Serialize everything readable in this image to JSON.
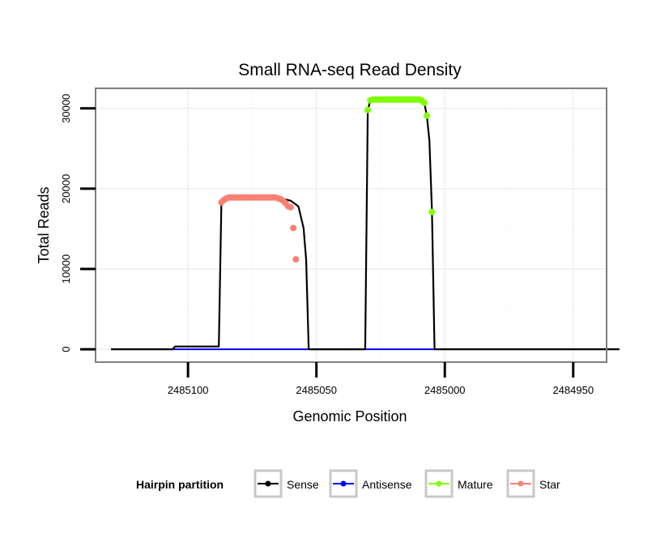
{
  "chart_data": {
    "type": "line",
    "title": "Small RNA-seq Read Density",
    "xlabel": "Genomic Position",
    "ylabel": "Total Reads",
    "x_reversed": true,
    "xlim": [
      2485136,
      2484937
    ],
    "ylim": [
      -1600,
      32500
    ],
    "x_ticks": [
      2485100,
      2485050,
      2485000,
      2484950
    ],
    "x_tick_labels": [
      "2485100",
      "2485050",
      "2485000",
      "2484950"
    ],
    "y_ticks": [
      0,
      10000,
      20000,
      30000
    ],
    "y_tick_labels": [
      "0",
      "10000",
      "20000",
      "30000"
    ],
    "legend": {
      "title": "Hairpin partition",
      "position": "bottom",
      "entries": [
        {
          "name": "Sense",
          "color": "#000000"
        },
        {
          "name": "Antisense",
          "color": "#0000ff"
        },
        {
          "name": "Mature",
          "color": "#7fff00"
        },
        {
          "name": "Star",
          "color": "#fa8072"
        }
      ]
    },
    "series": [
      {
        "name": "Sense",
        "color": "#000000",
        "points": [
          [
            2485136,
            0
          ],
          [
            2485106,
            0
          ],
          [
            2485105,
            350
          ],
          [
            2485088,
            350
          ],
          [
            2485087,
            18300
          ],
          [
            2485085,
            18600
          ],
          [
            2485084,
            18800
          ],
          [
            2485083,
            18900
          ],
          [
            2485066,
            18900
          ],
          [
            2485064,
            18800
          ],
          [
            2485060,
            18500
          ],
          [
            2485057,
            17800
          ],
          [
            2485055,
            15100
          ],
          [
            2485054,
            11200
          ],
          [
            2485053,
            0
          ],
          [
            2485003,
            0
          ],
          [
            2485001,
            0
          ],
          [
            2484999,
            0
          ],
          [
            2484937,
            0
          ]
        ],
        "segments": [
          [
            [
              2485130,
              0
            ],
            [
              2485106,
              0
            ],
            [
              2485105,
              350
            ],
            [
              2485088,
              350
            ],
            [
              2485087,
              18300
            ],
            [
              2485085,
              18600
            ],
            [
              2485084,
              18800
            ],
            [
              2485083,
              18900
            ],
            [
              2485066,
              18900
            ],
            [
              2485064,
              18800
            ],
            [
              2485060,
              18500
            ],
            [
              2485057,
              17800
            ],
            [
              2485055,
              15100
            ],
            [
              2485054,
              11200
            ],
            [
              2485053,
              0
            ],
            [
              2485031,
              0
            ],
            [
              2485030,
              29800
            ],
            [
              2485029,
              31000
            ],
            [
              2485028,
              31100
            ],
            [
              2485010,
              31100
            ],
            [
              2485009,
              31000
            ],
            [
              2485008,
              30700
            ],
            [
              2485007,
              29100
            ],
            [
              2485006,
              26000
            ],
            [
              2485005,
              17100
            ],
            [
              2485004,
              0
            ],
            [
              2484932,
              0
            ]
          ]
        ]
      },
      {
        "name": "Antisense",
        "color": "#0000ff",
        "points": [
          [
            2485106,
            0
          ],
          [
            2485004,
            0
          ]
        ]
      },
      {
        "name": "Mature",
        "color": "#7fff00",
        "points": [
          [
            2485030,
            29800
          ],
          [
            2485029,
            31000
          ],
          [
            2485028,
            31100
          ],
          [
            2485027,
            31100
          ],
          [
            2485026,
            31100
          ],
          [
            2485025,
            31100
          ],
          [
            2485024,
            31100
          ],
          [
            2485023,
            31100
          ],
          [
            2485022,
            31100
          ],
          [
            2485021,
            31100
          ],
          [
            2485020,
            31100
          ],
          [
            2485019,
            31100
          ],
          [
            2485018,
            31100
          ],
          [
            2485017,
            31100
          ],
          [
            2485016,
            31100
          ],
          [
            2485015,
            31100
          ],
          [
            2485014,
            31100
          ],
          [
            2485013,
            31100
          ],
          [
            2485012,
            31100
          ],
          [
            2485011,
            31100
          ],
          [
            2485010,
            31100
          ],
          [
            2485009,
            31000
          ],
          [
            2485008,
            30700
          ],
          [
            2485007,
            29100
          ],
          [
            2485005,
            17100
          ]
        ]
      },
      {
        "name": "Star",
        "color": "#fa8072",
        "points": [
          [
            2485087,
            18300
          ],
          [
            2485086,
            18600
          ],
          [
            2485085,
            18800
          ],
          [
            2485084,
            18900
          ],
          [
            2485083,
            18900
          ],
          [
            2485082,
            18900
          ],
          [
            2485081,
            18900
          ],
          [
            2485080,
            18900
          ],
          [
            2485079,
            18900
          ],
          [
            2485078,
            18900
          ],
          [
            2485077,
            18900
          ],
          [
            2485076,
            18900
          ],
          [
            2485075,
            18900
          ],
          [
            2485074,
            18900
          ],
          [
            2485073,
            18900
          ],
          [
            2485072,
            18900
          ],
          [
            2485071,
            18900
          ],
          [
            2485070,
            18900
          ],
          [
            2485069,
            18900
          ],
          [
            2485068,
            18900
          ],
          [
            2485067,
            18900
          ],
          [
            2485066,
            18900
          ],
          [
            2485065,
            18800
          ],
          [
            2485064,
            18700
          ],
          [
            2485063,
            18500
          ],
          [
            2485062,
            18200
          ],
          [
            2485061,
            17800
          ],
          [
            2485060,
            17700
          ],
          [
            2485059,
            15100
          ],
          [
            2485058,
            11200
          ]
        ]
      }
    ]
  }
}
